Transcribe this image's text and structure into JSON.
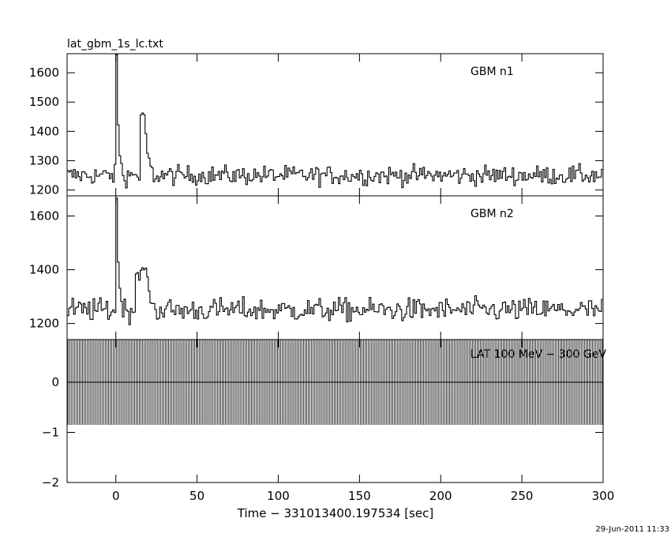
{
  "file_title": "lat_gbm_1s_lc.txt",
  "xlabel": "Time − 331013400.197534 [sec]",
  "timestamp": "29-Jun-2011 11:33",
  "line_color": "#000000",
  "chart_data": [
    {
      "type": "line",
      "title": "",
      "series": [
        {
          "name": "GBM n1",
          "baseline": 1250,
          "noise": 30,
          "events": [
            {
              "t_start": 0,
              "t_peak": 0,
              "value": 1660,
              "t_end": 3
            },
            {
              "t_start": 15,
              "t_peak": 17,
              "value": 1460,
              "t_end": 22
            }
          ]
        }
      ],
      "xlim": [
        -30,
        300
      ],
      "ylim": [
        1180,
        1665
      ],
      "yticks": [
        1200,
        1300,
        1400,
        1500,
        1600
      ],
      "ytick_labels": [
        "1200",
        "1300",
        "1400",
        "1500",
        "1600"
      ]
    },
    {
      "type": "line",
      "title": "",
      "series": [
        {
          "name": "GBM n2",
          "baseline": 1250,
          "noise": 40,
          "events": [
            {
              "t_start": 0,
              "t_peak": 0,
              "value": 1670,
              "t_end": 3
            },
            {
              "t_start": 12,
              "t_peak": 18,
              "value": 1390,
              "t_end": 24
            }
          ]
        }
      ],
      "xlim": [
        -30,
        300
      ],
      "ylim": [
        1140,
        1675
      ],
      "yticks": [
        1200,
        1400,
        1600
      ],
      "ytick_labels": [
        "1200",
        "1400",
        "1600"
      ]
    },
    {
      "type": "line",
      "title": "",
      "series": [
        {
          "name": "LAT 100 MeV − 300 GeV",
          "values_constant": 0,
          "errorbar_low": -0.85,
          "errorbar_high": 0.85
        }
      ],
      "xlim": [
        -30,
        300
      ],
      "ylim": [
        -2,
        0.85
      ],
      "yticks": [
        -2,
        -1,
        0
      ],
      "ytick_labels": [
        "−2",
        "−1",
        "0"
      ]
    }
  ],
  "x_axis": {
    "ticks": [
      0,
      50,
      100,
      150,
      200,
      250,
      300
    ],
    "tick_labels": [
      "0",
      "50",
      "100",
      "150",
      "200",
      "250",
      "300"
    ]
  }
}
